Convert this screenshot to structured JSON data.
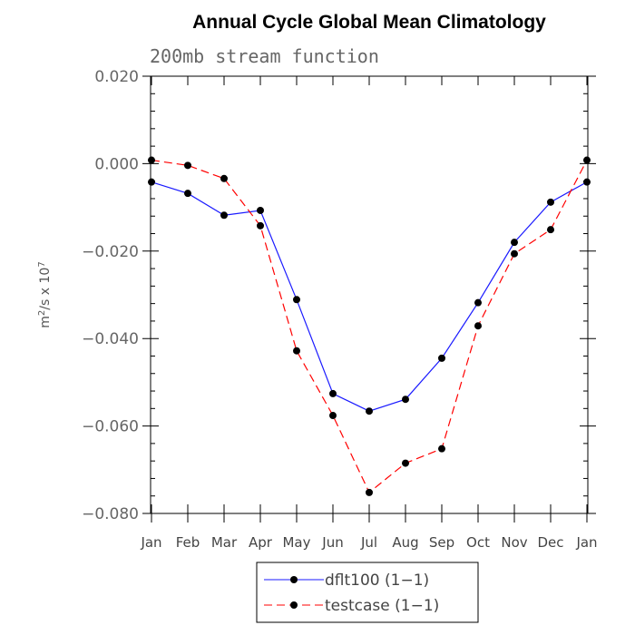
{
  "chart_data": {
    "type": "line",
    "title": "Annual Cycle Global Mean Climatology",
    "subtitle": "200mb stream function",
    "ylabel": {
      "base": "m",
      "sup1": "2",
      "mid": "/s x 10",
      "sup2": "7"
    },
    "xlabel": "",
    "categories": [
      "Jan",
      "Feb",
      "Mar",
      "Apr",
      "May",
      "Jun",
      "Jul",
      "Aug",
      "Sep",
      "Oct",
      "Nov",
      "Dec",
      "Jan"
    ],
    "ylim": [
      -0.08,
      0.02
    ],
    "yticks": [
      0.02,
      0.0,
      -0.02,
      -0.04,
      -0.06,
      -0.08
    ],
    "ytick_labels": [
      "0.020",
      "0.000",
      "−0.020",
      "−0.040",
      "−0.060",
      "−0.080"
    ],
    "grid": false,
    "legend_position": "bottom-center",
    "series": [
      {
        "name": "dflt100 (1−1)",
        "color": "#1a1aff",
        "line_style": "solid",
        "values": [
          -0.0042,
          -0.0068,
          -0.0118,
          -0.0107,
          -0.0311,
          -0.0526,
          -0.0566,
          -0.0539,
          -0.0445,
          -0.0318,
          -0.018,
          -0.0088,
          -0.0042
        ]
      },
      {
        "name": "testcase (1−1)",
        "color": "#ff0000",
        "line_style": "dashed",
        "values": [
          0.0008,
          -0.0004,
          -0.0034,
          -0.0142,
          -0.0428,
          -0.0576,
          -0.0752,
          -0.0685,
          -0.0652,
          -0.0371,
          -0.0206,
          -0.0151,
          0.0008
        ]
      }
    ]
  }
}
